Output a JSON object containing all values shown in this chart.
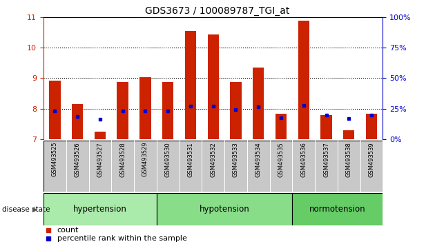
{
  "title": "GDS3673 / 100089787_TGI_at",
  "samples": [
    "GSM493525",
    "GSM493526",
    "GSM493527",
    "GSM493528",
    "GSM493529",
    "GSM493530",
    "GSM493531",
    "GSM493532",
    "GSM493533",
    "GSM493534",
    "GSM493535",
    "GSM493536",
    "GSM493537",
    "GSM493538",
    "GSM493539"
  ],
  "count_values": [
    8.92,
    8.15,
    7.25,
    8.88,
    9.02,
    8.88,
    10.55,
    10.43,
    8.88,
    9.35,
    7.83,
    10.88,
    7.78,
    7.28,
    7.82
  ],
  "percentile_values": [
    7.92,
    7.75,
    7.65,
    7.93,
    7.93,
    7.92,
    8.08,
    8.08,
    7.97,
    8.05,
    7.7,
    8.1,
    7.78,
    7.68,
    7.78
  ],
  "ymin": 7,
  "ymax": 11,
  "yticks": [
    7,
    8,
    9,
    10,
    11
  ],
  "right_yticks_pct": [
    0,
    25,
    50,
    75,
    100
  ],
  "right_yticklabels": [
    "0%",
    "25%",
    "50%",
    "75%",
    "100%"
  ],
  "groups": [
    {
      "label": "hypertension",
      "start": 0,
      "end": 5,
      "color": "#aaeaaa"
    },
    {
      "label": "hypotension",
      "start": 5,
      "end": 11,
      "color": "#88dd88"
    },
    {
      "label": "normotension",
      "start": 11,
      "end": 15,
      "color": "#66cc66"
    }
  ],
  "bar_color": "#cc2200",
  "percentile_color": "#0000cc",
  "bar_width": 0.5,
  "background_color": "#ffffff",
  "left_axis_color": "#cc2200",
  "right_axis_color": "#0000cc",
  "legend_count": "count",
  "legend_percentile": "percentile rank within the sample",
  "disease_label": "disease state",
  "tick_bg_color": "#c8c8c8"
}
